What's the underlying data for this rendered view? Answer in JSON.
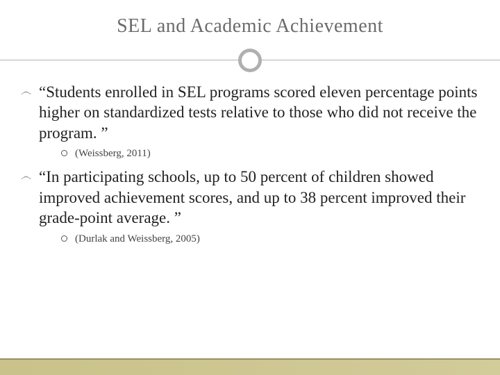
{
  "title": "SEL and Academic Achievement",
  "bullets": [
    {
      "text": "“Students enrolled in SEL programs scored eleven percentage points higher on standardized tests relative to those who did not receive the program. ”",
      "citation": "(Weissberg, 2011)"
    },
    {
      "text": "“In participating schools, up to 50 percent of children showed improved achievement scores, and up to 38 percent improved their grade-point average. ”",
      "citation": "(Durlak and Weissberg, 2005)"
    }
  ],
  "colors": {
    "title_color": "#6b6b6b",
    "divider_color": "#b0b0b0",
    "text_color": "#222222",
    "citation_color": "#444444",
    "footer_accent": "#c9c28a",
    "footer_line": "#9a9257",
    "background": "#ffffff"
  },
  "typography": {
    "title_fontsize": 28,
    "body_fontsize": 23,
    "citation_fontsize": 15,
    "font_family": "Georgia, serif"
  }
}
